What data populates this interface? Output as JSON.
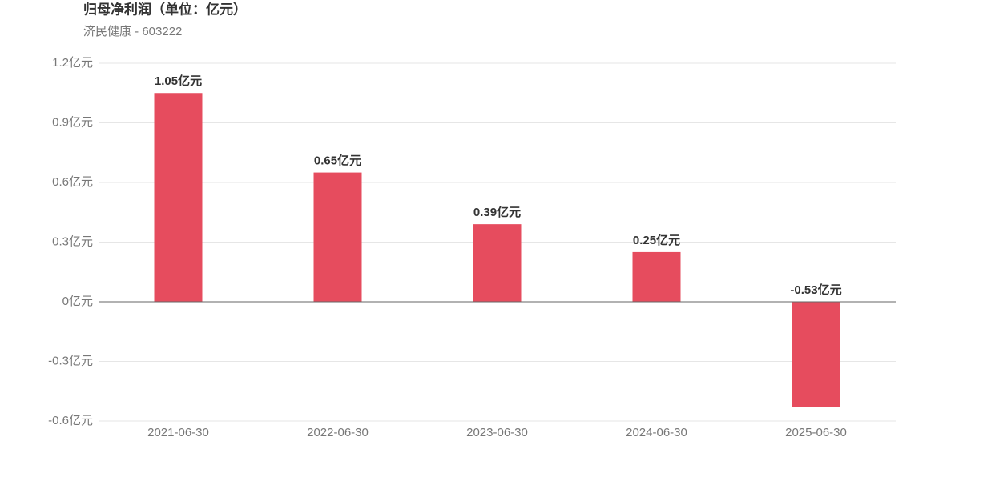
{
  "chart_data": {
    "type": "bar",
    "title": "归母净利润（单位：亿元）",
    "subtitle": "济民健康 - 603222",
    "categories": [
      "2021-06-30",
      "2022-06-30",
      "2023-06-30",
      "2024-06-30",
      "2025-06-30"
    ],
    "values": [
      1.05,
      0.65,
      0.39,
      0.25,
      -0.53
    ],
    "value_labels": [
      "1.05亿元",
      "0.65亿元",
      "0.39亿元",
      "0.25亿元",
      "-0.53亿元"
    ],
    "color": "#e64c5e",
    "ylim": [
      -0.6,
      1.2
    ],
    "yticks": [
      {
        "value": -0.6,
        "label": "-0.6亿元"
      },
      {
        "value": -0.3,
        "label": "-0.3亿元"
      },
      {
        "value": 0,
        "label": "0亿元"
      },
      {
        "value": 0.3,
        "label": "0.3亿元"
      },
      {
        "value": 0.6,
        "label": "0.6亿元"
      },
      {
        "value": 0.9,
        "label": "0.9亿元"
      },
      {
        "value": 1.2,
        "label": "1.2亿元"
      }
    ],
    "grid": true
  }
}
